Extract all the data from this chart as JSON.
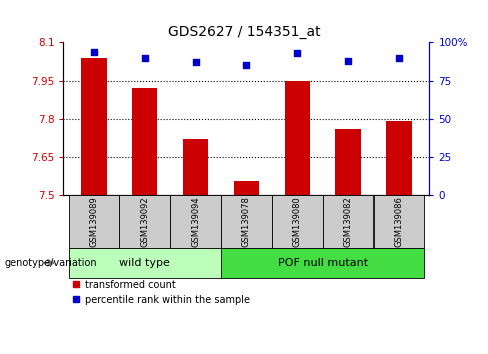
{
  "title": "GDS2627 / 154351_at",
  "samples": [
    "GSM139089",
    "GSM139092",
    "GSM139094",
    "GSM139078",
    "GSM139080",
    "GSM139082",
    "GSM139086"
  ],
  "bar_values": [
    8.04,
    7.92,
    7.72,
    7.555,
    7.95,
    7.76,
    7.79
  ],
  "percentile_values": [
    94,
    90,
    87,
    85,
    93,
    88,
    90
  ],
  "ylim_left": [
    7.5,
    8.1
  ],
  "ylim_right": [
    0,
    100
  ],
  "yticks_left": [
    7.5,
    7.65,
    7.8,
    7.95,
    8.1
  ],
  "ytick_labels_left": [
    "7.5",
    "7.65",
    "7.8",
    "7.95",
    "8.1"
  ],
  "yticks_right": [
    0,
    25,
    50,
    75,
    100
  ],
  "ytick_labels_right": [
    "0",
    "25",
    "50",
    "75",
    "100%"
  ],
  "bar_color": "#CC0000",
  "dot_color": "#0000CC",
  "grid_color": "#000000",
  "group1_label": "wild type",
  "group2_label": "POF null mutant",
  "group1_indices": [
    0,
    1,
    2
  ],
  "group2_indices": [
    3,
    4,
    5,
    6
  ],
  "group1_color": "#bbffbb",
  "group2_color": "#44dd44",
  "genotype_label": "genotype/variation",
  "legend_bar_label": "transformed count",
  "legend_dot_label": "percentile rank within the sample",
  "tick_color_left": "#CC0000",
  "tick_color_right": "#0000CC",
  "bar_width": 0.5,
  "background_color": "#ffffff",
  "sample_box_color": "#cccccc"
}
